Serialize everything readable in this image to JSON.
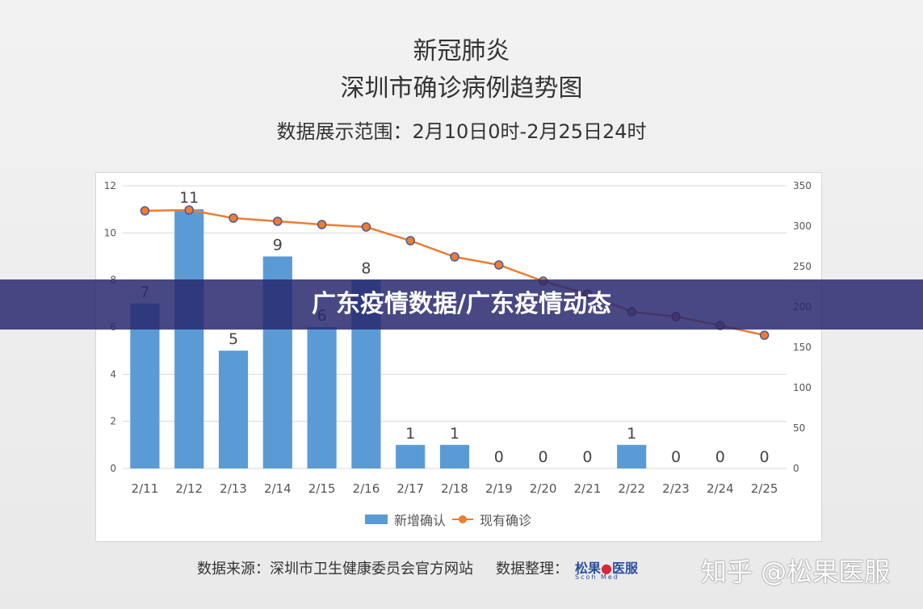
{
  "header": {
    "title_line1": "新冠肺炎",
    "title_line2": "深圳市确诊病例趋势图",
    "subtitle": "数据展示范围：2月10日0时-2月25日24时"
  },
  "banner": {
    "text": "广东疫情数据/广东疫情动态",
    "color": "#28286e"
  },
  "footer": {
    "source": "数据来源：深圳市卫生健康委员会官方网站",
    "organizer_label": "数据整理：",
    "logo_text": "松果",
    "logo_text2": "医服",
    "logo_sub": "Scoh Med",
    "watermark": "知乎 @松果医服"
  },
  "chart_data": {
    "type": "bar",
    "categories": [
      "2/11",
      "2/12",
      "2/13",
      "2/14",
      "2/15",
      "2/16",
      "2/17",
      "2/18",
      "2/19",
      "2/20",
      "2/21",
      "2/22",
      "2/23",
      "2/24",
      "2/25"
    ],
    "series": [
      {
        "name": "新增确认",
        "type": "bar",
        "axis": "left",
        "color": "#5b9bd5",
        "values": [
          7,
          11,
          5,
          9,
          6,
          8,
          1,
          1,
          0,
          0,
          0,
          1,
          0,
          0,
          0
        ]
      },
      {
        "name": "现有确诊",
        "type": "line",
        "axis": "right",
        "color": "#ed7d31",
        "values": [
          319,
          320,
          310,
          306,
          302,
          299,
          282,
          262,
          252,
          232,
          216,
          194,
          188,
          177,
          165
        ]
      }
    ],
    "ylim_left": [
      0,
      12
    ],
    "yticks_left": [
      0,
      2,
      4,
      6,
      8,
      10,
      12
    ],
    "ylim_right": [
      0,
      350
    ],
    "yticks_right": [
      0,
      50,
      100,
      150,
      200,
      250,
      300,
      350
    ],
    "grid": true,
    "legend": "bottom"
  }
}
